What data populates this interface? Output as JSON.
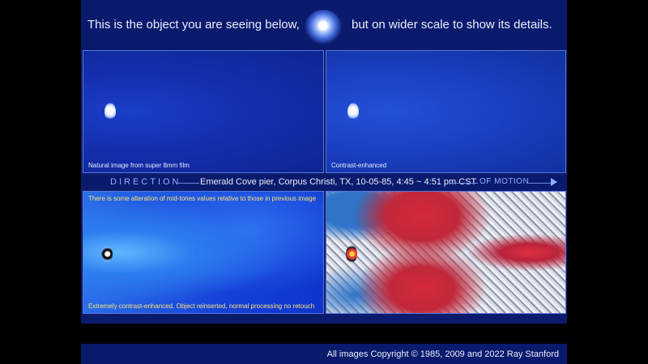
{
  "header": {
    "text_left": "This is the object you are seeing below,",
    "text_right": "but on wider scale to show its details."
  },
  "panels": {
    "top_left_caption": "Natural image from super 8mm film",
    "top_right_caption": "Contrast-enhanced",
    "bottom_left_top_caption": "There is some alteration of mid-tones values relative to those in previous image",
    "bottom_left_caption": "Extremely contrast-enhanced. Object reinserted, normal processing no retouch"
  },
  "direction_bar": {
    "left_label": "DIRECTION",
    "middle_label": "Emerald Cove pier, Corpus Christi, TX, 10-05-85, 4:45 ~ 4:51 pm CST",
    "right_label": "OF MOTION"
  },
  "footer": {
    "copyright": "All images Copyright © 1985, 2009 and 2022 Ray Stanford"
  }
}
